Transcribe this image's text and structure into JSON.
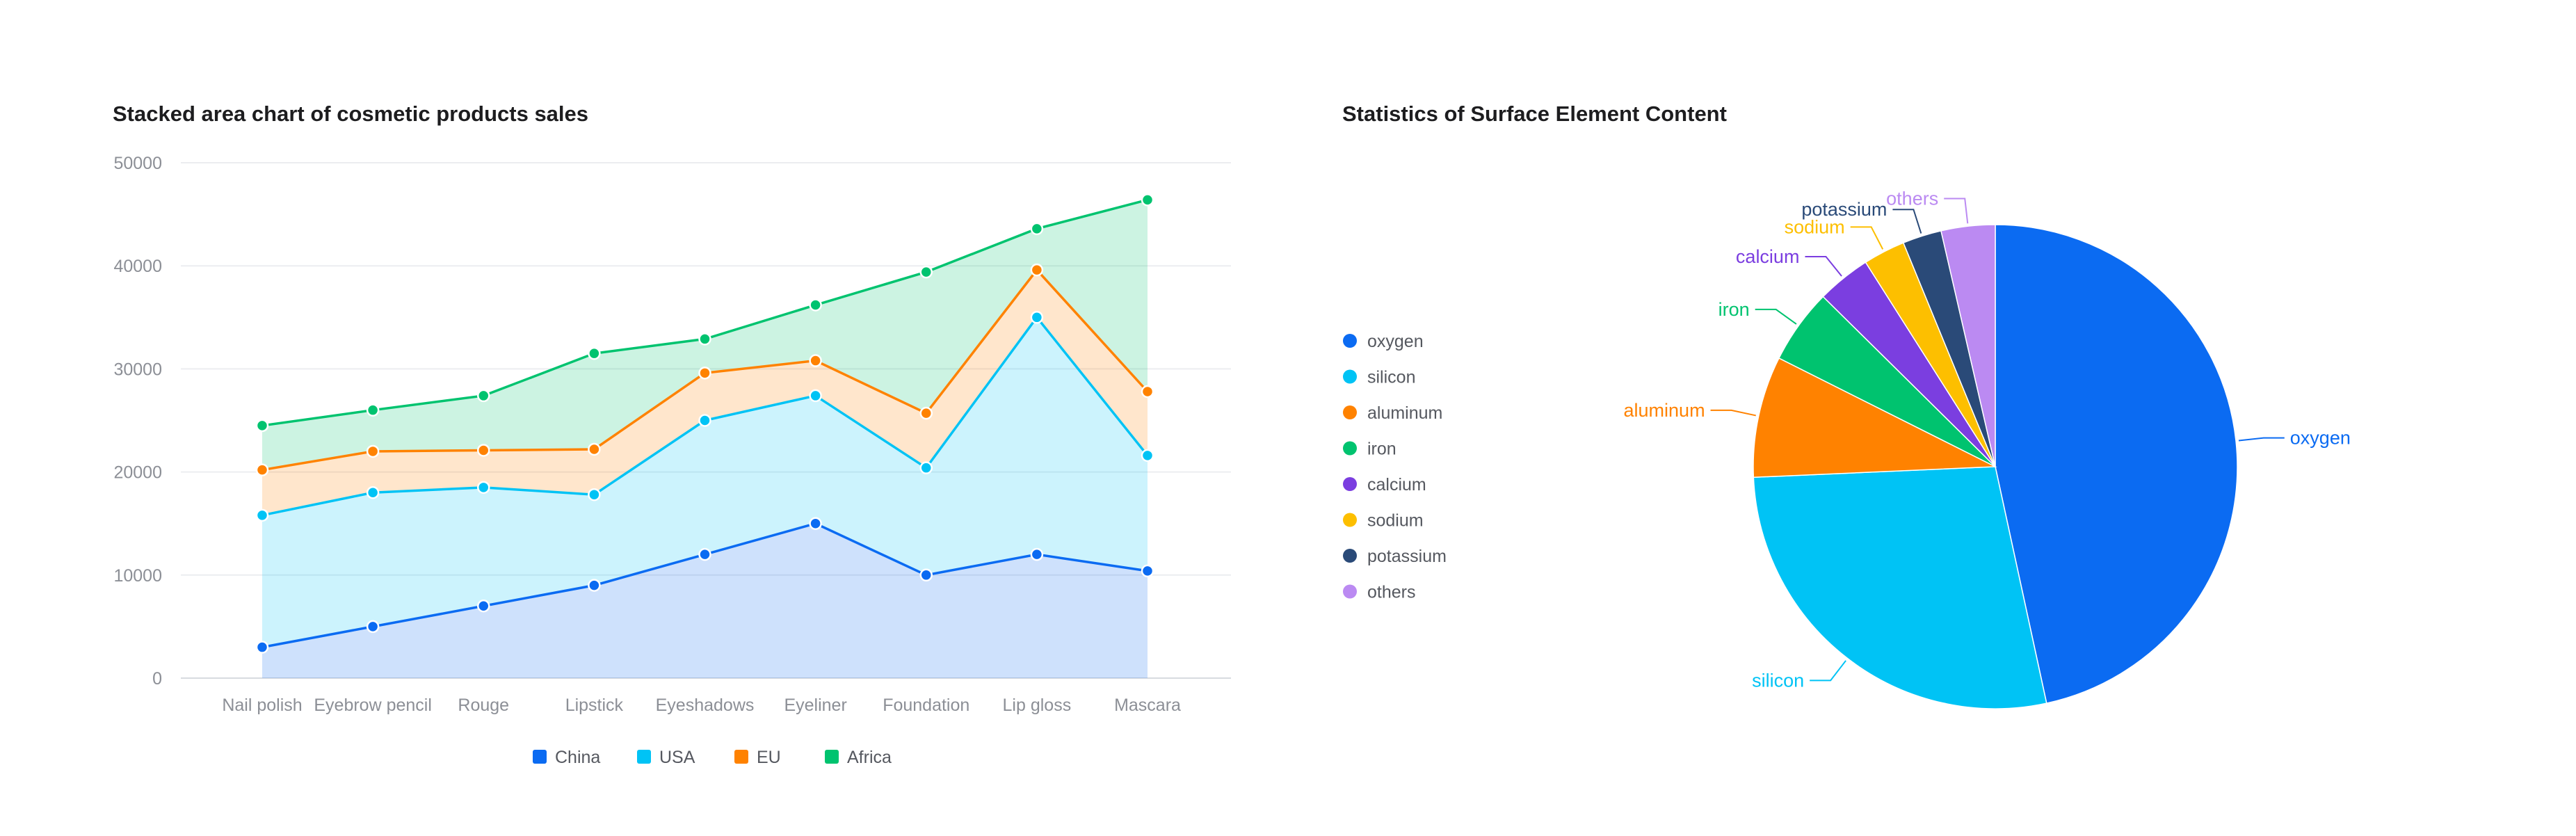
{
  "chart_data": [
    {
      "type": "area",
      "stacked": true,
      "title": "Stacked area chart of cosmetic products sales",
      "categories": [
        "Nail polish",
        "Eyebrow pencil",
        "Rouge",
        "Lipstick",
        "Eyeshadows",
        "Eyeliner",
        "Foundation",
        "Lip gloss",
        "Mascara"
      ],
      "series": [
        {
          "name": "China",
          "color": "#0b6bf2",
          "values": [
            3000,
            5000,
            7000,
            9000,
            12000,
            15000,
            10000,
            12000,
            10400
          ]
        },
        {
          "name": "USA",
          "color": "#00c3f5",
          "values": [
            12800,
            13000,
            11500,
            8800,
            13000,
            12400,
            10400,
            23000,
            11200
          ]
        },
        {
          "name": "EU",
          "color": "#ff8200",
          "values": [
            4400,
            4000,
            3600,
            4400,
            4600,
            3400,
            5300,
            4600,
            6200
          ]
        },
        {
          "name": "Africa",
          "color": "#00c36f",
          "values": [
            4300,
            4000,
            5300,
            9300,
            3300,
            5400,
            13700,
            4000,
            18600
          ]
        }
      ],
      "yticks": [
        0,
        10000,
        20000,
        30000,
        40000,
        50000
      ],
      "ylim": [
        0,
        50000
      ],
      "legend": "bottom",
      "grid": true
    },
    {
      "type": "pie",
      "title": "Statistics of Surface Element Content",
      "slices": [
        {
          "label": "oxygen",
          "value": 46.6,
          "color": "#0b6bf2"
        },
        {
          "label": "silicon",
          "value": 27.7,
          "color": "#00c3f5"
        },
        {
          "label": "aluminum",
          "value": 8.1,
          "color": "#ff8200"
        },
        {
          "label": "iron",
          "value": 5.0,
          "color": "#00c36f"
        },
        {
          "label": "calcium",
          "value": 3.6,
          "color": "#7b3ee0"
        },
        {
          "label": "sodium",
          "value": 2.8,
          "color": "#fdbf00"
        },
        {
          "label": "potassium",
          "value": 2.6,
          "color": "#2a4a78"
        },
        {
          "label": "others",
          "value": 3.6,
          "color": "#bb8af2"
        }
      ],
      "legend": "left"
    }
  ]
}
